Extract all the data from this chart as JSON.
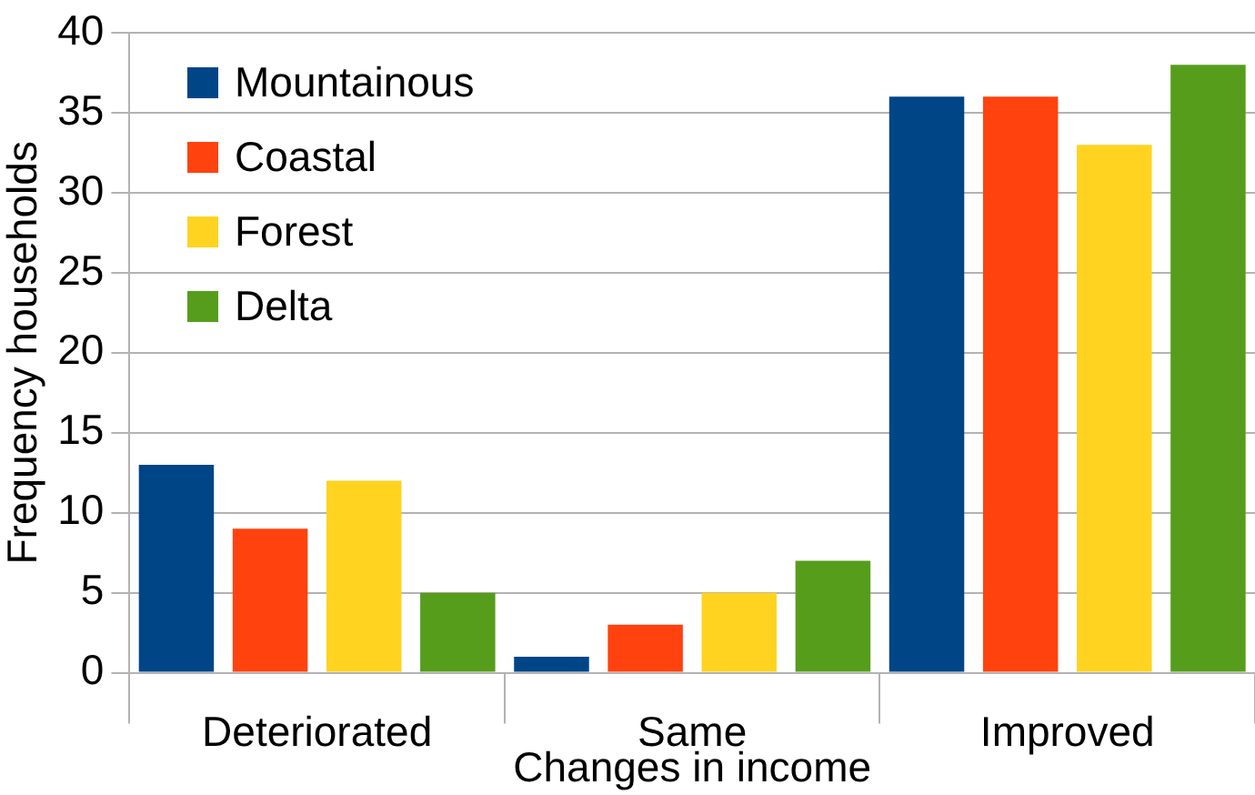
{
  "chart_data": {
    "type": "bar",
    "xlabel": "Changes in income",
    "ylabel": "Frequency households",
    "categories": [
      "Deteriorated",
      "Same",
      "Improved"
    ],
    "series": [
      {
        "name": "Mountainous",
        "color": "#004586",
        "values": [
          13,
          1,
          36
        ]
      },
      {
        "name": "Coastal",
        "color": "#ff420e",
        "values": [
          9,
          3,
          36
        ]
      },
      {
        "name": "Forest",
        "color": "#ffd320",
        "values": [
          12,
          5,
          33
        ]
      },
      {
        "name": "Delta",
        "color": "#579d1c",
        "values": [
          5,
          7,
          38
        ]
      }
    ],
    "ylim": [
      0,
      40
    ],
    "yticks": [
      0,
      5,
      10,
      15,
      20,
      25,
      30,
      35,
      40
    ],
    "grid": "y",
    "legend": "top left"
  }
}
